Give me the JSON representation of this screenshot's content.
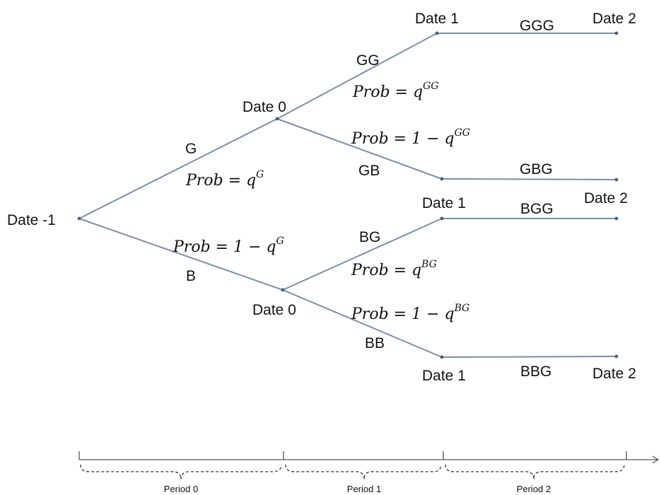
{
  "nodes": {
    "root": "Date -1",
    "g_node": "Date 0",
    "b_node": "Date 0",
    "gg_node": "Date 1",
    "gb_node": "",
    "bg_node": "Date 1",
    "bb_node": "Date 1",
    "ggg_end": "Date 2",
    "gbg_end": "Date 2",
    "bgg_end": "",
    "bbg_end": "Date 2"
  },
  "branches": {
    "g": "G",
    "b": "B",
    "gg": "GG",
    "gb": "GB",
    "bg": "BG",
    "bb": "BB",
    "ggg": "GGG",
    "gbg": "GBG",
    "bgg": "BGG",
    "bbg": "BBG"
  },
  "probabilities": {
    "g": {
      "lhs": "Prob",
      "rhs": "q",
      "sup": "G"
    },
    "b": {
      "lhs": "Prob",
      "rhs": "1 − q",
      "sup": "G"
    },
    "gg": {
      "lhs": "Prob",
      "rhs": "q",
      "sup": "GG"
    },
    "gb": {
      "lhs": "Prob",
      "rhs": "1 − q",
      "sup": "GG"
    },
    "bg": {
      "lhs": "Prob",
      "rhs": "q",
      "sup": "BG"
    },
    "bb": {
      "lhs": "Prob",
      "rhs": "1 − q",
      "sup": "BG"
    }
  },
  "periods": [
    "Period 0",
    "Period 1",
    "Period 2"
  ]
}
